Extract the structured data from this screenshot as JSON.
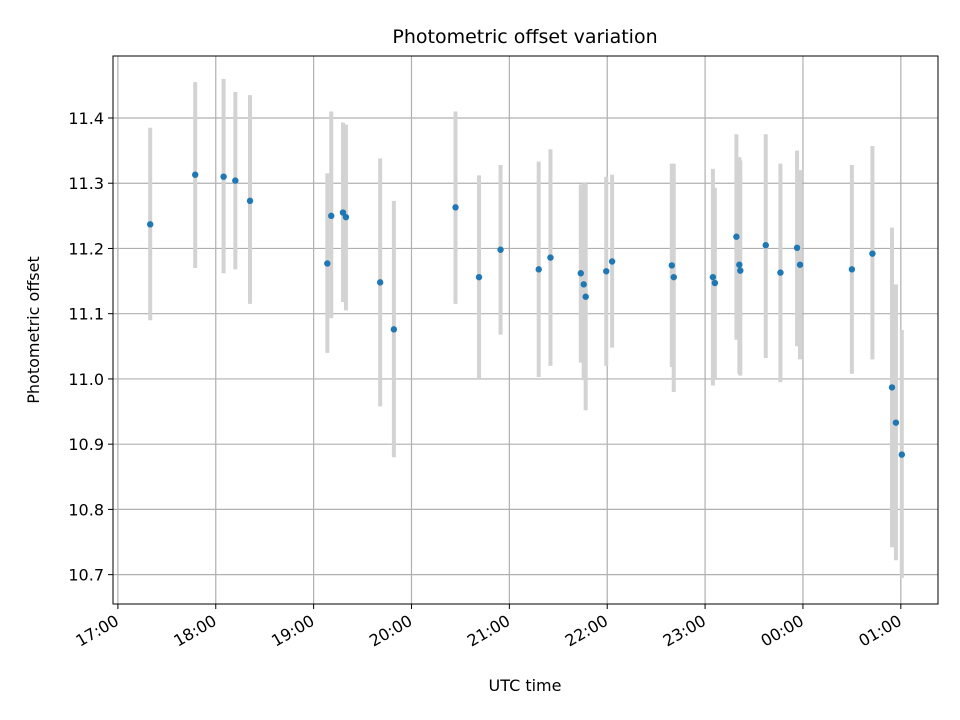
{
  "chart_data": {
    "type": "scatter",
    "title": "Photometric offset variation",
    "xlabel": "UTC time",
    "ylabel": "Photometric offset",
    "x_start": "17:00",
    "xlim_hours": [
      -0.05,
      8.38
    ],
    "ylim": [
      10.655,
      11.495
    ],
    "grid": true,
    "x_ticks": [
      {
        "h": 0,
        "label": "17:00"
      },
      {
        "h": 1,
        "label": "18:00"
      },
      {
        "h": 2,
        "label": "19:00"
      },
      {
        "h": 3,
        "label": "20:00"
      },
      {
        "h": 4,
        "label": "21:00"
      },
      {
        "h": 5,
        "label": "22:00"
      },
      {
        "h": 6,
        "label": "23:00"
      },
      {
        "h": 7,
        "label": "00:00"
      },
      {
        "h": 8,
        "label": "01:00"
      }
    ],
    "y_ticks": [
      {
        "v": 10.7,
        "label": "10.7"
      },
      {
        "v": 10.8,
        "label": "10.8"
      },
      {
        "v": 10.9,
        "label": "10.9"
      },
      {
        "v": 11.0,
        "label": "11.0"
      },
      {
        "v": 11.1,
        "label": "11.1"
      },
      {
        "v": 11.2,
        "label": "11.2"
      },
      {
        "v": 11.3,
        "label": "11.3"
      },
      {
        "v": 11.4,
        "label": "11.4"
      }
    ],
    "colors": {
      "point": "#1f77b4",
      "errorbar": "#d3d3d3",
      "grid": "#b0b0b0"
    },
    "series": [
      {
        "points": [
          {
            "x": 0.33,
            "y": 11.237,
            "lo": 11.09,
            "hi": 11.385
          },
          {
            "x": 0.79,
            "y": 11.313,
            "lo": 11.17,
            "hi": 11.455
          },
          {
            "x": 1.08,
            "y": 11.31,
            "lo": 11.162,
            "hi": 11.46
          },
          {
            "x": 1.2,
            "y": 11.304,
            "lo": 11.168,
            "hi": 11.44
          },
          {
            "x": 1.35,
            "y": 11.273,
            "lo": 11.115,
            "hi": 11.435
          },
          {
            "x": 2.14,
            "y": 11.177,
            "lo": 11.04,
            "hi": 11.315
          },
          {
            "x": 2.18,
            "y": 11.25,
            "lo": 11.093,
            "hi": 11.41
          },
          {
            "x": 2.3,
            "y": 11.255,
            "lo": 11.118,
            "hi": 11.393
          },
          {
            "x": 2.33,
            "y": 11.248,
            "lo": 11.105,
            "hi": 11.39
          },
          {
            "x": 2.68,
            "y": 11.148,
            "lo": 10.958,
            "hi": 11.338
          },
          {
            "x": 2.82,
            "y": 11.076,
            "lo": 10.88,
            "hi": 11.273
          },
          {
            "x": 3.45,
            "y": 11.263,
            "lo": 11.115,
            "hi": 11.41
          },
          {
            "x": 3.69,
            "y": 11.156,
            "lo": 11.0,
            "hi": 11.312
          },
          {
            "x": 3.91,
            "y": 11.198,
            "lo": 11.068,
            "hi": 11.328
          },
          {
            "x": 4.3,
            "y": 11.168,
            "lo": 11.003,
            "hi": 11.333
          },
          {
            "x": 4.42,
            "y": 11.186,
            "lo": 11.02,
            "hi": 11.352
          },
          {
            "x": 4.73,
            "y": 11.162,
            "lo": 11.025,
            "hi": 11.298
          },
          {
            "x": 4.76,
            "y": 11.145,
            "lo": 10.998,
            "hi": 11.3
          },
          {
            "x": 4.78,
            "y": 11.126,
            "lo": 10.952,
            "hi": 11.3
          },
          {
            "x": 4.99,
            "y": 11.165,
            "lo": 11.02,
            "hi": 11.31
          },
          {
            "x": 5.05,
            "y": 11.18,
            "lo": 11.048,
            "hi": 11.313
          },
          {
            "x": 5.66,
            "y": 11.174,
            "lo": 11.018,
            "hi": 11.33
          },
          {
            "x": 5.68,
            "y": 11.156,
            "lo": 10.98,
            "hi": 11.33
          },
          {
            "x": 6.08,
            "y": 11.156,
            "lo": 10.99,
            "hi": 11.322
          },
          {
            "x": 6.1,
            "y": 11.147,
            "lo": 11.0,
            "hi": 11.293
          },
          {
            "x": 6.32,
            "y": 11.218,
            "lo": 11.06,
            "hi": 11.375
          },
          {
            "x": 6.35,
            "y": 11.175,
            "lo": 11.008,
            "hi": 11.34
          },
          {
            "x": 6.36,
            "y": 11.166,
            "lo": 11.005,
            "hi": 11.335
          },
          {
            "x": 6.62,
            "y": 11.205,
            "lo": 11.032,
            "hi": 11.375
          },
          {
            "x": 6.77,
            "y": 11.163,
            "lo": 10.995,
            "hi": 11.33
          },
          {
            "x": 6.94,
            "y": 11.201,
            "lo": 11.05,
            "hi": 11.35
          },
          {
            "x": 6.97,
            "y": 11.175,
            "lo": 11.03,
            "hi": 11.32
          },
          {
            "x": 7.5,
            "y": 11.168,
            "lo": 11.008,
            "hi": 11.328
          },
          {
            "x": 7.71,
            "y": 11.192,
            "lo": 11.03,
            "hi": 11.357
          },
          {
            "x": 7.91,
            "y": 10.987,
            "lo": 10.742,
            "hi": 11.232
          },
          {
            "x": 7.95,
            "y": 10.933,
            "lo": 10.722,
            "hi": 11.145
          },
          {
            "x": 8.01,
            "y": 10.884,
            "lo": 10.695,
            "hi": 11.075
          }
        ]
      }
    ]
  }
}
